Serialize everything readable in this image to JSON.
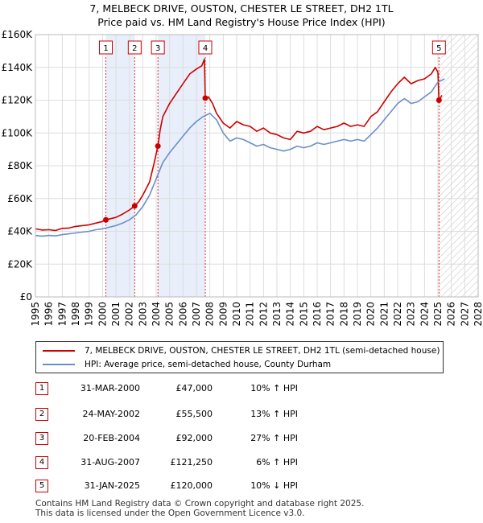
{
  "header": {
    "title": "7, MELBECK DRIVE, OUSTON, CHESTER LE STREET, DH2 1TL",
    "subtitle": "Price paid vs. HM Land Registry's House Price Index (HPI)"
  },
  "colors": {
    "price_line": "#cc0000",
    "hpi_line": "#6a8fc8",
    "shade": "#e8eefa",
    "grid": "#dddddd",
    "marker_box": "#cc0000"
  },
  "chart_data": {
    "type": "line",
    "title": "Price paid vs. HM Land Registry's House Price Index (HPI)",
    "xlabel": "",
    "ylabel": "",
    "xlim": [
      1995,
      2028
    ],
    "ylim": [
      0,
      160000
    ],
    "y_ticks": [
      0,
      20000,
      40000,
      60000,
      80000,
      100000,
      120000,
      140000,
      160000
    ],
    "y_tick_labels": [
      "£0",
      "£20K",
      "£40K",
      "£60K",
      "£80K",
      "£100K",
      "£120K",
      "£140K",
      "£160K"
    ],
    "x_ticks": [
      1995,
      1996,
      1997,
      1998,
      1999,
      2000,
      2001,
      2002,
      2003,
      2004,
      2005,
      2006,
      2007,
      2008,
      2009,
      2010,
      2011,
      2012,
      2013,
      2014,
      2015,
      2016,
      2017,
      2018,
      2019,
      2020,
      2021,
      2022,
      2023,
      2024,
      2025,
      2026,
      2027,
      2028
    ],
    "x_tick_labels": [
      "1995",
      "1996",
      "1997",
      "1998",
      "1999",
      "2000",
      "2001",
      "2002",
      "2003",
      "2004",
      "2005",
      "2006",
      "2007",
      "2008",
      "2009",
      "2010",
      "2011",
      "2012",
      "2013",
      "2014",
      "2015",
      "2016",
      "2017",
      "2018",
      "2019",
      "2020",
      "2021",
      "2022",
      "2023",
      "2024",
      "2025",
      "2026",
      "2027",
      "2028"
    ],
    "grid": true,
    "legend_position": "bottom",
    "forecast_from": 2025.1,
    "shaded_ranges": [
      [
        2000.25,
        2002.4
      ],
      [
        2004.13,
        2007.66
      ]
    ],
    "series": [
      {
        "name": "7, MELBECK DRIVE, OUSTON, CHESTER LE STREET, DH2 1TL (semi-detached house)",
        "color": "#cc0000",
        "points": [
          [
            1995.0,
            41500
          ],
          [
            1995.5,
            40800
          ],
          [
            1996.0,
            41000
          ],
          [
            1996.5,
            40500
          ],
          [
            1997.0,
            41800
          ],
          [
            1997.5,
            42000
          ],
          [
            1998.0,
            43000
          ],
          [
            1998.5,
            43500
          ],
          [
            1999.0,
            44000
          ],
          [
            1999.5,
            45000
          ],
          [
            2000.0,
            46000
          ],
          [
            2000.25,
            47000
          ],
          [
            2000.5,
            47500
          ],
          [
            2001.0,
            48500
          ],
          [
            2001.5,
            50500
          ],
          [
            2002.0,
            53000
          ],
          [
            2002.4,
            55500
          ],
          [
            2002.7,
            58000
          ],
          [
            2003.0,
            62000
          ],
          [
            2003.5,
            70000
          ],
          [
            2003.8,
            80000
          ],
          [
            2004.13,
            92000
          ],
          [
            2004.3,
            102000
          ],
          [
            2004.5,
            110000
          ],
          [
            2005.0,
            118000
          ],
          [
            2005.5,
            124000
          ],
          [
            2006.0,
            130000
          ],
          [
            2006.5,
            136000
          ],
          [
            2007.0,
            139000
          ],
          [
            2007.4,
            141000
          ],
          [
            2007.6,
            145000
          ],
          [
            2007.66,
            121250
          ],
          [
            2007.9,
            122000
          ],
          [
            2008.2,
            118000
          ],
          [
            2008.5,
            112000
          ],
          [
            2009.0,
            106000
          ],
          [
            2009.5,
            103000
          ],
          [
            2010.0,
            107000
          ],
          [
            2010.5,
            105000
          ],
          [
            2011.0,
            104000
          ],
          [
            2011.5,
            101000
          ],
          [
            2012.0,
            103000
          ],
          [
            2012.5,
            100000
          ],
          [
            2013.0,
            99000
          ],
          [
            2013.5,
            97000
          ],
          [
            2014.0,
            96000
          ],
          [
            2014.5,
            101000
          ],
          [
            2015.0,
            100000
          ],
          [
            2015.5,
            101000
          ],
          [
            2016.0,
            104000
          ],
          [
            2016.5,
            102000
          ],
          [
            2017.0,
            103000
          ],
          [
            2017.5,
            104000
          ],
          [
            2018.0,
            106000
          ],
          [
            2018.5,
            104000
          ],
          [
            2019.0,
            105000
          ],
          [
            2019.5,
            104000
          ],
          [
            2020.0,
            110000
          ],
          [
            2020.5,
            113000
          ],
          [
            2021.0,
            119000
          ],
          [
            2021.5,
            125000
          ],
          [
            2022.0,
            130000
          ],
          [
            2022.5,
            134000
          ],
          [
            2023.0,
            130000
          ],
          [
            2023.5,
            132000
          ],
          [
            2024.0,
            133000
          ],
          [
            2024.5,
            136000
          ],
          [
            2024.8,
            140000
          ],
          [
            2025.0,
            137000
          ],
          [
            2025.08,
            120000
          ],
          [
            2025.3,
            123000
          ]
        ]
      },
      {
        "name": "HPI: Average price, semi-detached house, County Durham",
        "color": "#6a8fc8",
        "points": [
          [
            1995.0,
            37500
          ],
          [
            1995.5,
            37000
          ],
          [
            1996.0,
            37500
          ],
          [
            1996.5,
            37200
          ],
          [
            1997.0,
            38000
          ],
          [
            1997.5,
            38500
          ],
          [
            1998.0,
            39000
          ],
          [
            1998.5,
            39500
          ],
          [
            1999.0,
            40000
          ],
          [
            1999.5,
            41000
          ],
          [
            2000.0,
            41500
          ],
          [
            2000.5,
            42500
          ],
          [
            2001.0,
            43500
          ],
          [
            2001.5,
            45000
          ],
          [
            2002.0,
            47000
          ],
          [
            2002.5,
            50000
          ],
          [
            2003.0,
            55000
          ],
          [
            2003.5,
            62000
          ],
          [
            2004.0,
            72000
          ],
          [
            2004.5,
            82000
          ],
          [
            2005.0,
            88000
          ],
          [
            2005.5,
            93000
          ],
          [
            2006.0,
            98000
          ],
          [
            2006.5,
            103000
          ],
          [
            2007.0,
            107000
          ],
          [
            2007.5,
            110000
          ],
          [
            2008.0,
            112000
          ],
          [
            2008.5,
            108000
          ],
          [
            2009.0,
            100000
          ],
          [
            2009.5,
            95000
          ],
          [
            2010.0,
            97000
          ],
          [
            2010.5,
            96000
          ],
          [
            2011.0,
            94000
          ],
          [
            2011.5,
            92000
          ],
          [
            2012.0,
            93000
          ],
          [
            2012.5,
            91000
          ],
          [
            2013.0,
            90000
          ],
          [
            2013.5,
            89000
          ],
          [
            2014.0,
            90000
          ],
          [
            2014.5,
            92000
          ],
          [
            2015.0,
            91000
          ],
          [
            2015.5,
            92000
          ],
          [
            2016.0,
            94000
          ],
          [
            2016.5,
            93000
          ],
          [
            2017.0,
            94000
          ],
          [
            2017.5,
            95000
          ],
          [
            2018.0,
            96000
          ],
          [
            2018.5,
            95000
          ],
          [
            2019.0,
            96000
          ],
          [
            2019.5,
            95000
          ],
          [
            2020.0,
            99000
          ],
          [
            2020.5,
            103000
          ],
          [
            2021.0,
            108000
          ],
          [
            2021.5,
            113000
          ],
          [
            2022.0,
            118000
          ],
          [
            2022.5,
            121000
          ],
          [
            2023.0,
            118000
          ],
          [
            2023.5,
            119000
          ],
          [
            2024.0,
            122000
          ],
          [
            2024.5,
            125000
          ],
          [
            2025.0,
            131000
          ],
          [
            2025.5,
            133000
          ]
        ]
      }
    ],
    "markers": [
      {
        "label": "1",
        "x": 2000.25,
        "y": 47000
      },
      {
        "label": "2",
        "x": 2002.4,
        "y": 55500
      },
      {
        "label": "3",
        "x": 2004.13,
        "y": 92000
      },
      {
        "label": "4",
        "x": 2007.66,
        "y": 121250
      },
      {
        "label": "5",
        "x": 2025.08,
        "y": 120000
      }
    ]
  },
  "legend": {
    "price_label": "7, MELBECK DRIVE, OUSTON, CHESTER LE STREET, DH2 1TL (semi-detached house)",
    "hpi_label": "HPI: Average price, semi-detached house, County Durham"
  },
  "transactions": [
    {
      "num": "1",
      "date": "31-MAR-2000",
      "price": "£47,000",
      "hpi": "10% ↑ HPI"
    },
    {
      "num": "2",
      "date": "24-MAY-2002",
      "price": "£55,500",
      "hpi": "13% ↑ HPI"
    },
    {
      "num": "3",
      "date": "20-FEB-2004",
      "price": "£92,000",
      "hpi": "27% ↑ HPI"
    },
    {
      "num": "4",
      "date": "31-AUG-2007",
      "price": "£121,250",
      "hpi": "6% ↑ HPI"
    },
    {
      "num": "5",
      "date": "31-JAN-2025",
      "price": "£120,000",
      "hpi": "10% ↓ HPI"
    }
  ],
  "footer": {
    "line1": "Contains HM Land Registry data © Crown copyright and database right 2025.",
    "line2": "This data is licensed under the Open Government Licence v3.0."
  }
}
